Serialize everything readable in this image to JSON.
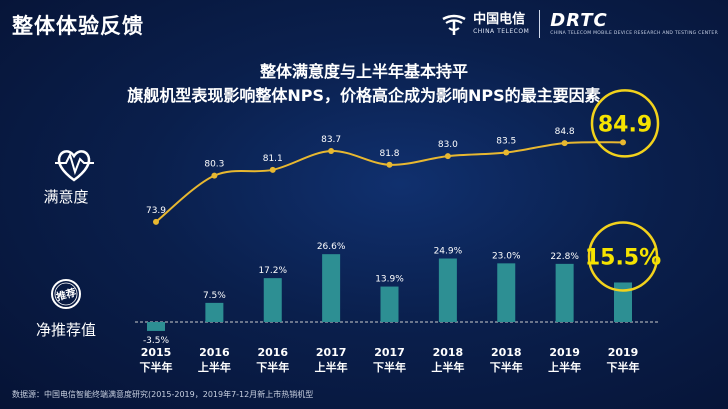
{
  "page": {
    "title": "整体体验反馈",
    "headline_1": "整体满意度与上半年基本持平",
    "headline_2": "旗舰机型表现影响整体NPS，价格高企成为影响NPS的最主要因素",
    "satisfaction_label": "满意度",
    "nps_label": "净推荐值",
    "nps_badge_text": "推荐",
    "footnote": "数据源：中国电信智能终端满意度研究(2015-2019，2019年7-12月新上市热销机型"
  },
  "logos": {
    "telecom_cn": "中国电信",
    "telecom_en": "CHINA TELECOM",
    "drtc_name": "DRTC",
    "drtc_sub": "CHINA TELECOM MOBILE DEVICE RESEARCH AND TESTING CENTER"
  },
  "colors": {
    "line": "#e8b830",
    "bar": "#2d8f93",
    "highlight_circle": "#f2d21c",
    "highlight_text": "#f5e300",
    "zero_line": "#cccccc"
  },
  "chart_data": {
    "type": "line+bar",
    "categories": [
      [
        "2015",
        "下半年"
      ],
      [
        "2016",
        "上半年"
      ],
      [
        "2016",
        "下半年"
      ],
      [
        "2017",
        "上半年"
      ],
      [
        "2017",
        "下半年"
      ],
      [
        "2018",
        "上半年"
      ],
      [
        "2018",
        "下半年"
      ],
      [
        "2019",
        "上半年"
      ],
      [
        "2019",
        "下半年"
      ]
    ],
    "satisfaction": {
      "name": "满意度",
      "values": [
        73.9,
        80.3,
        81.1,
        83.7,
        81.8,
        83.0,
        83.5,
        84.8,
        84.9
      ],
      "labels": [
        "73.9",
        "80.3",
        "81.1",
        "83.7",
        "81.8",
        "83.0",
        "83.5",
        "84.8",
        "84.9"
      ],
      "ylim": [
        70,
        88
      ]
    },
    "nps": {
      "name": "净推荐值",
      "values": [
        -3.5,
        7.5,
        17.2,
        26.6,
        13.9,
        24.9,
        23.0,
        22.8,
        15.5
      ],
      "labels": [
        "-3.5%",
        "7.5%",
        "17.2%",
        "26.6%",
        "13.9%",
        "24.9%",
        "23.0%",
        "22.8%",
        "15.5%"
      ],
      "ylim": [
        -5,
        30
      ]
    },
    "highlighted_index": 8
  }
}
